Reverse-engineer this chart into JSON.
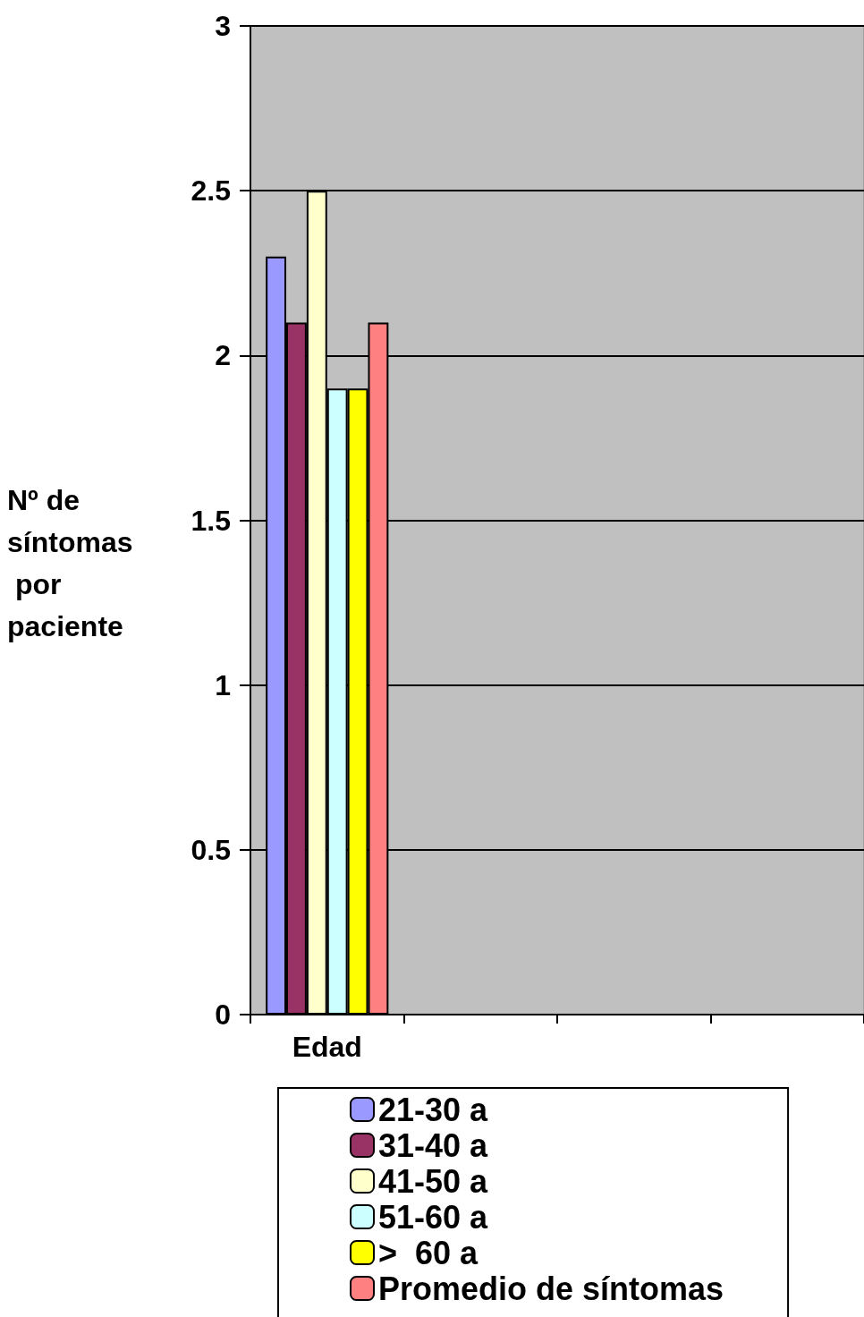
{
  "chart_data": {
    "type": "bar",
    "ylabel": "Nº de síntomas por paciente",
    "categories": [
      "Edad",
      null,
      null,
      null
    ],
    "series": [
      {
        "name": "21-30 a",
        "color": "#9999ff",
        "values": [
          2.3,
          null,
          null,
          null
        ]
      },
      {
        "name": "31-40 a",
        "color": "#993366",
        "values": [
          2.1,
          null,
          null,
          null
        ]
      },
      {
        "name": "41-50 a",
        "color": "#ffffcc",
        "values": [
          2.5,
          null,
          null,
          null
        ]
      },
      {
        "name": "51-60 a",
        "color": "#ccffff",
        "values": [
          1.9,
          null,
          null,
          null
        ]
      },
      {
        "name": ">  60 a",
        "color": "#ffff00",
        "values": [
          1.9,
          null,
          null,
          null
        ]
      },
      {
        "name": "Promedio de síntomas",
        "color": "#ff8080",
        "values": [
          2.1,
          null,
          null,
          null
        ]
      }
    ],
    "ylim": [
      0,
      3
    ],
    "yticks": [
      0,
      0.5,
      1,
      1.5,
      2,
      2.5,
      3
    ],
    "grid": "y",
    "legend": "bottom"
  }
}
